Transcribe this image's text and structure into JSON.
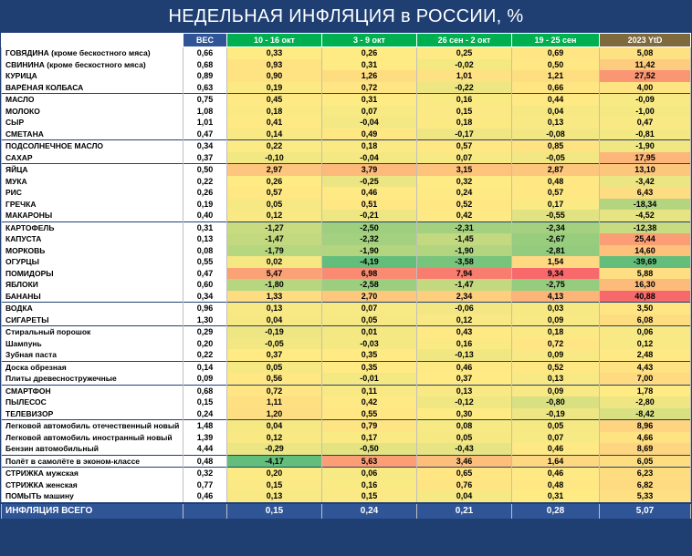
{
  "title": "НЕДЕЛЬНАЯ ИНФЛЯЦИЯ в РОССИИ, %",
  "columns": [
    "ВЕС",
    "10 - 16 окт",
    "3 - 9 окт",
    "26 сен - 2 окт",
    "19 - 25 сен",
    "2023 YtD"
  ],
  "rows": [
    {
      "name": "ГОВЯДИНА (кроме бескостного мяса)",
      "w": "0,66",
      "v": [
        "0,33",
        "0,26",
        "0,25",
        "0,69"
      ],
      "ytd": "5,08",
      "g": 1
    },
    {
      "name": "СВИНИНА (кроме бескостного мяса)",
      "w": "0,68",
      "v": [
        "0,93",
        "0,31",
        "-0,02",
        "0,50"
      ],
      "ytd": "11,42",
      "g": 0
    },
    {
      "name": "КУРИЦА",
      "w": "0,89",
      "v": [
        "0,90",
        "1,26",
        "1,01",
        "1,21"
      ],
      "ytd": "27,52",
      "g": 0
    },
    {
      "name": "ВАРЁНАЯ КОЛБАСА",
      "w": "0,63",
      "v": [
        "0,19",
        "0,72",
        "-0,22",
        "0,66"
      ],
      "ytd": "4,00",
      "g": 0
    },
    {
      "name": "МАСЛО",
      "w": "0,75",
      "v": [
        "0,45",
        "0,31",
        "0,16",
        "0,44"
      ],
      "ytd": "-0,09",
      "g": 1
    },
    {
      "name": "МОЛОКО",
      "w": "1,08",
      "v": [
        "0,18",
        "0,07",
        "0,15",
        "0,04"
      ],
      "ytd": "-1,00",
      "g": 0
    },
    {
      "name": "СЫР",
      "w": "1,01",
      "v": [
        "0,41",
        "-0,04",
        "0,18",
        "0,13"
      ],
      "ytd": "0,47",
      "g": 0
    },
    {
      "name": "СМЕТАНА",
      "w": "0,47",
      "v": [
        "0,14",
        "0,49",
        "-0,17",
        "-0,08"
      ],
      "ytd": "-0,81",
      "g": 0
    },
    {
      "name": "ПОДСОЛНЕЧНОЕ МАСЛО",
      "w": "0,34",
      "v": [
        "0,22",
        "0,18",
        "0,57",
        "0,85"
      ],
      "ytd": "-1,90",
      "g": 1
    },
    {
      "name": "САХАР",
      "w": "0,37",
      "v": [
        "-0,10",
        "-0,04",
        "0,07",
        "-0,05"
      ],
      "ytd": "17,95",
      "g": 0
    },
    {
      "name": "ЯЙЦА",
      "w": "0,50",
      "v": [
        "2,97",
        "3,79",
        "3,15",
        "2,87"
      ],
      "ytd": "13,10",
      "g": 1
    },
    {
      "name": "МУКА",
      "w": "0,22",
      "v": [
        "0,26",
        "-0,25",
        "0,32",
        "0,48"
      ],
      "ytd": "-3,42",
      "g": 0
    },
    {
      "name": "РИС",
      "w": "0,26",
      "v": [
        "0,57",
        "0,46",
        "0,24",
        "0,57"
      ],
      "ytd": "6,43",
      "g": 0
    },
    {
      "name": "ГРЕЧКА",
      "w": "0,19",
      "v": [
        "0,05",
        "0,51",
        "0,52",
        "0,17"
      ],
      "ytd": "-18,34",
      "g": 0
    },
    {
      "name": "МАКАРОНЫ",
      "w": "0,40",
      "v": [
        "0,12",
        "-0,21",
        "0,42",
        "-0,55"
      ],
      "ytd": "-4,52",
      "g": 0
    },
    {
      "name": "КАРТОФЕЛЬ",
      "w": "0,31",
      "v": [
        "-1,27",
        "-2,50",
        "-2,31",
        "-2,34"
      ],
      "ytd": "-12,38",
      "g": 1
    },
    {
      "name": "КАПУСТА",
      "w": "0,13",
      "v": [
        "-1,47",
        "-2,32",
        "-1,45",
        "-2,67"
      ],
      "ytd": "25,44",
      "g": 0
    },
    {
      "name": "МОРКОВЬ",
      "w": "0,08",
      "v": [
        "-1,79",
        "-1,90",
        "-1,90",
        "-2,81"
      ],
      "ytd": "14,60",
      "g": 0
    },
    {
      "name": "ОГУРЦЫ",
      "w": "0,55",
      "v": [
        "0,02",
        "-4,19",
        "-3,58",
        "1,54"
      ],
      "ytd": "-39,69",
      "g": 0
    },
    {
      "name": "ПОМИДОРЫ",
      "w": "0,47",
      "v": [
        "5,47",
        "6,98",
        "7,94",
        "9,34"
      ],
      "ytd": "5,88",
      "g": 0
    },
    {
      "name": "ЯБЛОКИ",
      "w": "0,60",
      "v": [
        "-1,80",
        "-2,58",
        "-1,47",
        "-2,75"
      ],
      "ytd": "16,30",
      "g": 0
    },
    {
      "name": "БАНАНЫ",
      "w": "0,34",
      "v": [
        "1,33",
        "2,70",
        "2,34",
        "4,13"
      ],
      "ytd": "40,88",
      "g": 0
    },
    {
      "name": "ВОДКА",
      "w": "0,96",
      "v": [
        "0,13",
        "0,07",
        "-0,06",
        "0,03"
      ],
      "ytd": "3,50",
      "g": 1
    },
    {
      "name": "СИГАРЕТЫ",
      "w": "1,30",
      "v": [
        "0,04",
        "0,05",
        "0,12",
        "0,09"
      ],
      "ytd": "6,08",
      "g": 0
    },
    {
      "name": "Стиральный порошок",
      "w": "0,29",
      "v": [
        "-0,19",
        "0,01",
        "0,43",
        "0,18"
      ],
      "ytd": "0,06",
      "g": 1
    },
    {
      "name": "Шампунь",
      "w": "0,20",
      "v": [
        "-0,05",
        "-0,03",
        "0,16",
        "0,72"
      ],
      "ytd": "0,12",
      "g": 0
    },
    {
      "name": "Зубная паста",
      "w": "0,22",
      "v": [
        "0,37",
        "0,35",
        "-0,13",
        "0,09"
      ],
      "ytd": "2,48",
      "g": 0
    },
    {
      "name": "Доска обрезная",
      "w": "0,14",
      "v": [
        "0,05",
        "0,35",
        "0,46",
        "0,52"
      ],
      "ytd": "4,43",
      "g": 1
    },
    {
      "name": "Плиты древесностружечные",
      "w": "0,09",
      "v": [
        "0,56",
        "-0,01",
        "0,37",
        "0,13"
      ],
      "ytd": "7,00",
      "g": 0
    },
    {
      "name": "СМАРТФОН",
      "w": "0,68",
      "v": [
        "0,72",
        "0,11",
        "0,13",
        "0,09"
      ],
      "ytd": "1,78",
      "g": 1
    },
    {
      "name": "ПЫЛЕСОС",
      "w": "0,15",
      "v": [
        "1,11",
        "0,42",
        "-0,12",
        "-0,80"
      ],
      "ytd": "-2,80",
      "g": 0
    },
    {
      "name": "ТЕЛЕВИЗОР",
      "w": "0,24",
      "v": [
        "1,20",
        "0,55",
        "0,30",
        "-0,19"
      ],
      "ytd": "-8,42",
      "g": 0
    },
    {
      "name": "Легковой автомобиль отечественный новый",
      "w": "1,48",
      "v": [
        "0,04",
        "0,79",
        "0,08",
        "0,05"
      ],
      "ytd": "8,96",
      "g": 1
    },
    {
      "name": "Легковой автомобиль иностранный новый",
      "w": "1,39",
      "v": [
        "0,12",
        "0,17",
        "0,05",
        "0,07"
      ],
      "ytd": "4,66",
      "g": 0
    },
    {
      "name": "Бензин автомобильный",
      "w": "4,44",
      "v": [
        "-0,29",
        "-0,50",
        "-0,43",
        "0,46"
      ],
      "ytd": "8,69",
      "g": 0
    },
    {
      "name": "Полёт в самолёте в эконом-классе",
      "w": "0,48",
      "v": [
        "-4,17",
        "5,63",
        "3,46",
        "1,64"
      ],
      "ytd": "6,05",
      "g": 1
    },
    {
      "name": "СТРИЖКА мужская",
      "w": "0,32",
      "v": [
        "0,20",
        "0,06",
        "0,65",
        "0,46"
      ],
      "ytd": "6,23",
      "g": 1
    },
    {
      "name": "СТРИЖКА женская",
      "w": "0,77",
      "v": [
        "0,15",
        "0,16",
        "0,76",
        "0,48"
      ],
      "ytd": "6,82",
      "g": 0
    },
    {
      "name": "ПОМЫТЬ машину",
      "w": "0,46",
      "v": [
        "0,13",
        "0,15",
        "0,04",
        "0,31"
      ],
      "ytd": "5,33",
      "g": 0
    }
  ],
  "total": {
    "name": "ИНФЛЯЦИЯ ВСЕГО",
    "w": "",
    "v": [
      "0,15",
      "0,24",
      "0,21",
      "0,28"
    ],
    "ytd": "5,07"
  }
}
